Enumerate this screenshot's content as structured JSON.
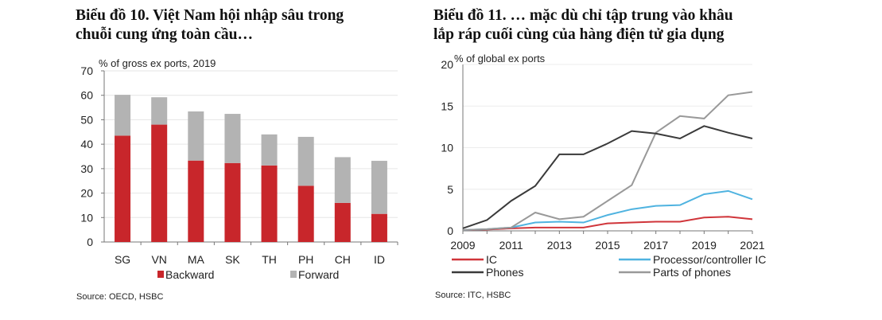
{
  "charts_titles": {
    "left": [
      "Biểu đồ 10. Việt Nam hội nhập sâu trong",
      "chuỗi cung ứng toàn cầu…"
    ],
    "right": [
      "Biểu đồ 11. … mặc dù chỉ tập trung vào khâu",
      "lắp ráp cuối cùng của hàng điện tử gia dụng"
    ]
  },
  "chart_data": [
    {
      "type": "bar",
      "stacked": true,
      "ylabel": "% of gross ex ports, 2019",
      "ylim": [
        0,
        70
      ],
      "yticks": [
        0,
        10,
        20,
        30,
        40,
        50,
        60,
        70
      ],
      "grid": true,
      "categories": [
        "SG",
        "VN",
        "MA",
        "SK",
        "TH",
        "PH",
        "CH",
        "ID"
      ],
      "series": [
        {
          "name": "Backward",
          "color": "#c8262b",
          "values": [
            43.5,
            48,
            33.3,
            32.3,
            31.3,
            23,
            16,
            11.5
          ]
        },
        {
          "name": "Forward",
          "color": "#b3b3b3",
          "values": [
            16.7,
            11.2,
            20.1,
            20.1,
            12.7,
            20,
            18.7,
            21.7
          ]
        }
      ],
      "legend": "bottom",
      "source": "Source: OECD, HSBC"
    },
    {
      "type": "line",
      "ylabel": "% of global ex ports",
      "ylim": [
        0,
        20
      ],
      "yticks": [
        0,
        5,
        10,
        15,
        20
      ],
      "xticks": [
        2009,
        2011,
        2013,
        2015,
        2017,
        2019,
        2021
      ],
      "grid": true,
      "x": [
        2009,
        2010,
        2011,
        2012,
        2013,
        2014,
        2015,
        2016,
        2017,
        2018,
        2019,
        2020,
        2021
      ],
      "series": [
        {
          "name": "IC",
          "color": "#d0353a",
          "values": [
            0.1,
            0.15,
            0.3,
            0.4,
            0.4,
            0.4,
            0.9,
            1.0,
            1.1,
            1.1,
            1.6,
            1.7,
            1.4
          ]
        },
        {
          "name": "Processor/controller IC",
          "color": "#4fb3e0",
          "values": [
            0.1,
            0.2,
            0.4,
            1.0,
            1.1,
            1.0,
            1.9,
            2.6,
            3.0,
            3.1,
            4.4,
            4.8,
            3.8
          ]
        },
        {
          "name": "Phones",
          "color": "#3a3a3a",
          "values": [
            0.3,
            1.3,
            3.6,
            5.4,
            9.2,
            9.2,
            10.5,
            12.0,
            11.7,
            11.1,
            12.6,
            11.8,
            11.1
          ]
        },
        {
          "name": "Parts of phones",
          "color": "#999999",
          "values": [
            0.1,
            0.2,
            0.4,
            2.2,
            1.4,
            1.7,
            3.6,
            5.5,
            11.8,
            13.8,
            13.5,
            16.3,
            16.7
          ]
        }
      ],
      "legend": "bottom",
      "source": "Source: ITC, HSBC"
    }
  ]
}
